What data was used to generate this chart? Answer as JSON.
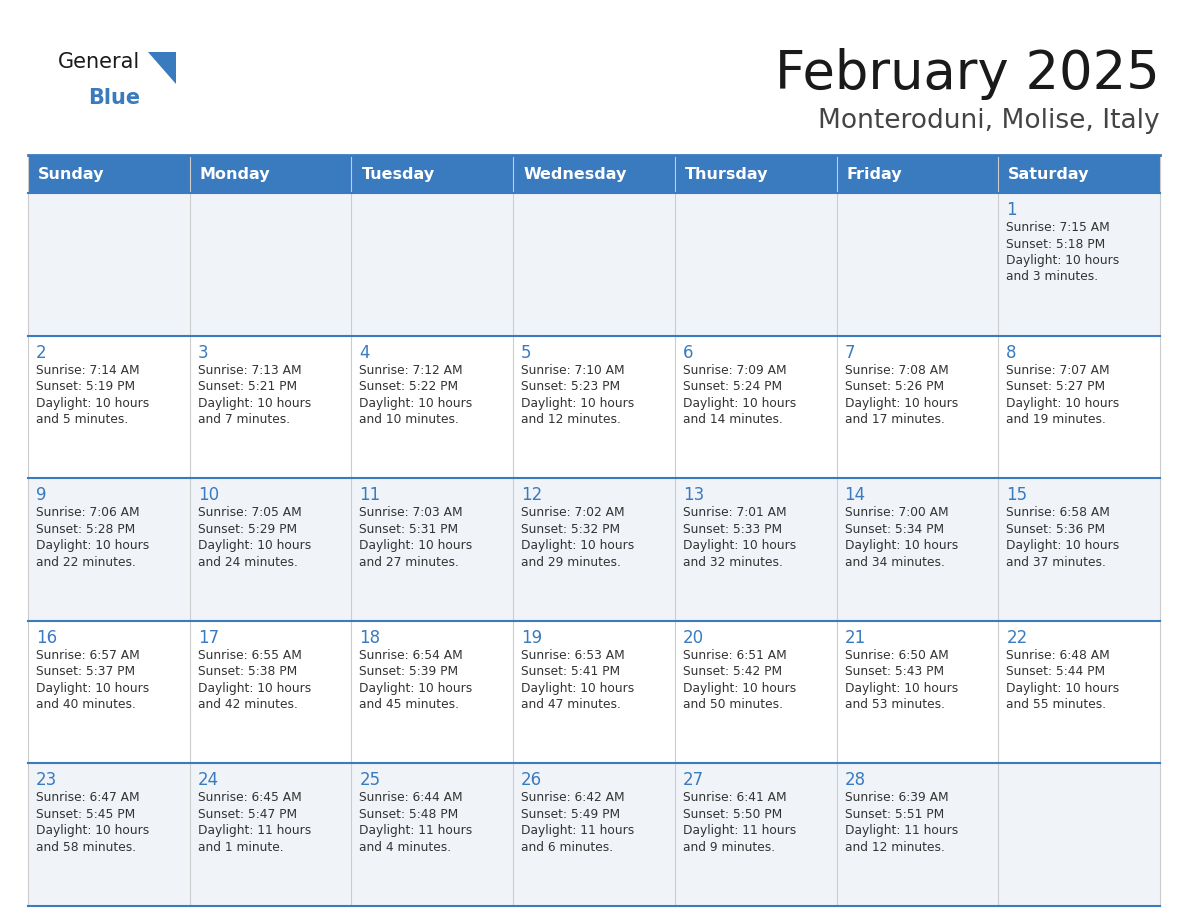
{
  "title": "February 2025",
  "subtitle": "Monteroduni, Molise, Italy",
  "header_bg": "#3a7abf",
  "header_text_color": "#ffffff",
  "cell_bg_row0": "#f0f4f8",
  "cell_bg_row1": "#ffffff",
  "cell_bg_row2": "#f0f4f8",
  "cell_bg_row3": "#ffffff",
  "cell_bg_row4": "#f0f4f8",
  "border_color": "#3a7abf",
  "day_names": [
    "Sunday",
    "Monday",
    "Tuesday",
    "Wednesday",
    "Thursday",
    "Friday",
    "Saturday"
  ],
  "title_color": "#1a1a1a",
  "subtitle_color": "#444444",
  "day_num_color": "#3a7abf",
  "info_color": "#333333",
  "logo_general_color": "#1a1a1a",
  "logo_blue_color": "#3a7abf",
  "logo_triangle_color": "#3a7abf",
  "days": [
    {
      "day": 1,
      "col": 6,
      "row": 0,
      "sunrise": "7:15 AM",
      "sunset": "5:18 PM",
      "daylight": "10 hours and 3 minutes."
    },
    {
      "day": 2,
      "col": 0,
      "row": 1,
      "sunrise": "7:14 AM",
      "sunset": "5:19 PM",
      "daylight": "10 hours and 5 minutes."
    },
    {
      "day": 3,
      "col": 1,
      "row": 1,
      "sunrise": "7:13 AM",
      "sunset": "5:21 PM",
      "daylight": "10 hours and 7 minutes."
    },
    {
      "day": 4,
      "col": 2,
      "row": 1,
      "sunrise": "7:12 AM",
      "sunset": "5:22 PM",
      "daylight": "10 hours and 10 minutes."
    },
    {
      "day": 5,
      "col": 3,
      "row": 1,
      "sunrise": "7:10 AM",
      "sunset": "5:23 PM",
      "daylight": "10 hours and 12 minutes."
    },
    {
      "day": 6,
      "col": 4,
      "row": 1,
      "sunrise": "7:09 AM",
      "sunset": "5:24 PM",
      "daylight": "10 hours and 14 minutes."
    },
    {
      "day": 7,
      "col": 5,
      "row": 1,
      "sunrise": "7:08 AM",
      "sunset": "5:26 PM",
      "daylight": "10 hours and 17 minutes."
    },
    {
      "day": 8,
      "col": 6,
      "row": 1,
      "sunrise": "7:07 AM",
      "sunset": "5:27 PM",
      "daylight": "10 hours and 19 minutes."
    },
    {
      "day": 9,
      "col": 0,
      "row": 2,
      "sunrise": "7:06 AM",
      "sunset": "5:28 PM",
      "daylight": "10 hours and 22 minutes."
    },
    {
      "day": 10,
      "col": 1,
      "row": 2,
      "sunrise": "7:05 AM",
      "sunset": "5:29 PM",
      "daylight": "10 hours and 24 minutes."
    },
    {
      "day": 11,
      "col": 2,
      "row": 2,
      "sunrise": "7:03 AM",
      "sunset": "5:31 PM",
      "daylight": "10 hours and 27 minutes."
    },
    {
      "day": 12,
      "col": 3,
      "row": 2,
      "sunrise": "7:02 AM",
      "sunset": "5:32 PM",
      "daylight": "10 hours and 29 minutes."
    },
    {
      "day": 13,
      "col": 4,
      "row": 2,
      "sunrise": "7:01 AM",
      "sunset": "5:33 PM",
      "daylight": "10 hours and 32 minutes."
    },
    {
      "day": 14,
      "col": 5,
      "row": 2,
      "sunrise": "7:00 AM",
      "sunset": "5:34 PM",
      "daylight": "10 hours and 34 minutes."
    },
    {
      "day": 15,
      "col": 6,
      "row": 2,
      "sunrise": "6:58 AM",
      "sunset": "5:36 PM",
      "daylight": "10 hours and 37 minutes."
    },
    {
      "day": 16,
      "col": 0,
      "row": 3,
      "sunrise": "6:57 AM",
      "sunset": "5:37 PM",
      "daylight": "10 hours and 40 minutes."
    },
    {
      "day": 17,
      "col": 1,
      "row": 3,
      "sunrise": "6:55 AM",
      "sunset": "5:38 PM",
      "daylight": "10 hours and 42 minutes."
    },
    {
      "day": 18,
      "col": 2,
      "row": 3,
      "sunrise": "6:54 AM",
      "sunset": "5:39 PM",
      "daylight": "10 hours and 45 minutes."
    },
    {
      "day": 19,
      "col": 3,
      "row": 3,
      "sunrise": "6:53 AM",
      "sunset": "5:41 PM",
      "daylight": "10 hours and 47 minutes."
    },
    {
      "day": 20,
      "col": 4,
      "row": 3,
      "sunrise": "6:51 AM",
      "sunset": "5:42 PM",
      "daylight": "10 hours and 50 minutes."
    },
    {
      "day": 21,
      "col": 5,
      "row": 3,
      "sunrise": "6:50 AM",
      "sunset": "5:43 PM",
      "daylight": "10 hours and 53 minutes."
    },
    {
      "day": 22,
      "col": 6,
      "row": 3,
      "sunrise": "6:48 AM",
      "sunset": "5:44 PM",
      "daylight": "10 hours and 55 minutes."
    },
    {
      "day": 23,
      "col": 0,
      "row": 4,
      "sunrise": "6:47 AM",
      "sunset": "5:45 PM",
      "daylight": "10 hours and 58 minutes."
    },
    {
      "day": 24,
      "col": 1,
      "row": 4,
      "sunrise": "6:45 AM",
      "sunset": "5:47 PM",
      "daylight": "11 hours and 1 minute."
    },
    {
      "day": 25,
      "col": 2,
      "row": 4,
      "sunrise": "6:44 AM",
      "sunset": "5:48 PM",
      "daylight": "11 hours and 4 minutes."
    },
    {
      "day": 26,
      "col": 3,
      "row": 4,
      "sunrise": "6:42 AM",
      "sunset": "5:49 PM",
      "daylight": "11 hours and 6 minutes."
    },
    {
      "day": 27,
      "col": 4,
      "row": 4,
      "sunrise": "6:41 AM",
      "sunset": "5:50 PM",
      "daylight": "11 hours and 9 minutes."
    },
    {
      "day": 28,
      "col": 5,
      "row": 4,
      "sunrise": "6:39 AM",
      "sunset": "5:51 PM",
      "daylight": "11 hours and 12 minutes."
    }
  ]
}
